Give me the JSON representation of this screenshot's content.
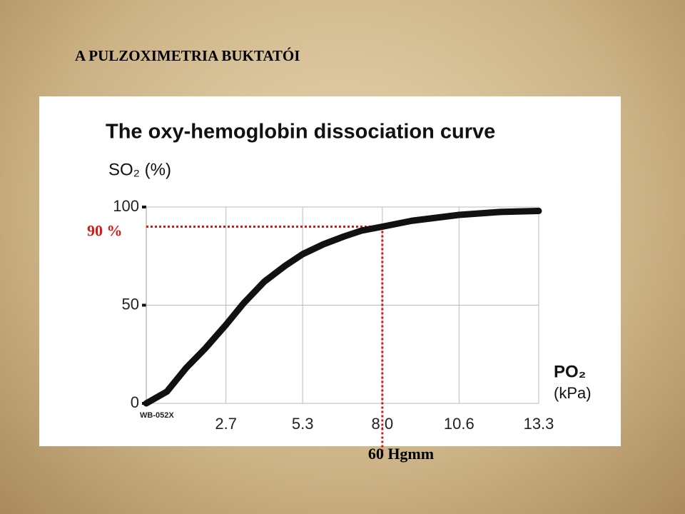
{
  "slide_title": "A PULZOXIMETRIA BUKTATÓI",
  "chart_data": {
    "type": "line",
    "title": "The oxy-hemoglobin dissociation curve",
    "y_label": "SO₂ (%)",
    "x_label": [
      "PO₂",
      "(kPa)"
    ],
    "code": "WB-052X",
    "x": [
      0,
      0.7,
      1.35,
      2,
      2.7,
      3.3,
      4,
      4.7,
      5.3,
      6,
      6.7,
      7.3,
      8,
      9,
      10.6,
      12,
      13.3
    ],
    "series": [
      {
        "name": "SO₂",
        "color": "#111111",
        "values": [
          0,
          6,
          18,
          28,
          40,
          51,
          62,
          70,
          76,
          81,
          85,
          88,
          90,
          93,
          96,
          97.5,
          98
        ]
      }
    ],
    "xlim": [
      0,
      13.3
    ],
    "xticks": [
      2.7,
      5.3,
      {
        "value": 8,
        "label": "8.0"
      },
      10.6,
      13.3
    ],
    "ylim": [
      0,
      100
    ],
    "yticks": [
      0,
      50,
      100
    ],
    "grid": true,
    "annotations": [
      {
        "axis": "y",
        "value": 90,
        "label": "90 %",
        "color": "#d11a1a"
      },
      {
        "axis": "x",
        "value": 8,
        "label": "60 Hgmm",
        "color": "#d11a1a"
      }
    ]
  }
}
